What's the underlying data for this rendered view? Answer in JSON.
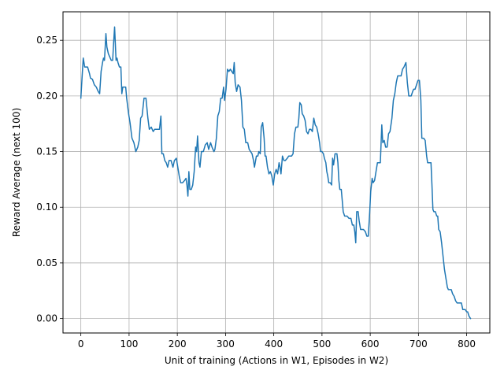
{
  "chart_data": {
    "type": "line",
    "title": "",
    "xlabel": "Unit of training (Actions in W1, Episodes in W2)",
    "ylabel": "Reward Average (next 100)",
    "xlim": [
      -37,
      848
    ],
    "ylim": [
      -0.013,
      0.2756
    ],
    "x_ticks": [
      0,
      100,
      200,
      300,
      400,
      500,
      600,
      700,
      800
    ],
    "y_ticks": [
      0.0,
      0.05,
      0.1,
      0.15,
      0.2,
      0.25
    ],
    "x_tick_labels": [
      "0",
      "100",
      "200",
      "300",
      "400",
      "500",
      "600",
      "700",
      "800"
    ],
    "y_tick_labels": [
      "0.00",
      "0.05",
      "0.10",
      "0.15",
      "0.20",
      "0.25"
    ],
    "grid": true,
    "series": [
      {
        "name": "",
        "color": "#1f77b4",
        "points": [
          [
            0,
            0.198
          ],
          [
            3,
            0.22
          ],
          [
            5,
            0.234
          ],
          [
            8,
            0.226
          ],
          [
            14,
            0.226
          ],
          [
            18,
            0.22
          ],
          [
            20,
            0.216
          ],
          [
            24,
            0.215
          ],
          [
            28,
            0.21
          ],
          [
            32,
            0.208
          ],
          [
            36,
            0.204
          ],
          [
            39,
            0.202
          ],
          [
            42,
            0.222
          ],
          [
            45,
            0.23
          ],
          [
            47,
            0.234
          ],
          [
            49,
            0.232
          ],
          [
            52,
            0.256
          ],
          [
            54,
            0.244
          ],
          [
            57,
            0.238
          ],
          [
            60,
            0.235
          ],
          [
            63,
            0.232
          ],
          [
            66,
            0.232
          ],
          [
            68,
            0.248
          ],
          [
            70,
            0.262
          ],
          [
            73,
            0.232
          ],
          [
            75,
            0.234
          ],
          [
            77,
            0.23
          ],
          [
            80,
            0.226
          ],
          [
            83,
            0.226
          ],
          [
            85,
            0.202
          ],
          [
            87,
            0.208
          ],
          [
            93,
            0.208
          ],
          [
            95,
            0.198
          ],
          [
            99,
            0.184
          ],
          [
            102,
            0.176
          ],
          [
            106,
            0.162
          ],
          [
            110,
            0.158
          ],
          [
            114,
            0.15
          ],
          [
            118,
            0.154
          ],
          [
            121,
            0.16
          ],
          [
            124,
            0.18
          ],
          [
            127,
            0.182
          ],
          [
            131,
            0.198
          ],
          [
            135,
            0.198
          ],
          [
            139,
            0.18
          ],
          [
            142,
            0.17
          ],
          [
            146,
            0.172
          ],
          [
            150,
            0.168
          ],
          [
            153,
            0.17
          ],
          [
            160,
            0.17
          ],
          [
            163,
            0.17
          ],
          [
            166,
            0.182
          ],
          [
            168,
            0.148
          ],
          [
            171,
            0.148
          ],
          [
            174,
            0.142
          ],
          [
            177,
            0.14
          ],
          [
            180,
            0.136
          ],
          [
            183,
            0.142
          ],
          [
            187,
            0.142
          ],
          [
            191,
            0.136
          ],
          [
            194,
            0.142
          ],
          [
            198,
            0.144
          ],
          [
            201,
            0.136
          ],
          [
            204,
            0.128
          ],
          [
            207,
            0.122
          ],
          [
            211,
            0.122
          ],
          [
            215,
            0.124
          ],
          [
            218,
            0.126
          ],
          [
            220,
            0.12
          ],
          [
            222,
            0.11
          ],
          [
            224,
            0.132
          ],
          [
            226,
            0.116
          ],
          [
            229,
            0.116
          ],
          [
            232,
            0.12
          ],
          [
            235,
            0.132
          ],
          [
            238,
            0.154
          ],
          [
            240,
            0.15
          ],
          [
            242,
            0.164
          ],
          [
            245,
            0.14
          ],
          [
            247,
            0.136
          ],
          [
            250,
            0.15
          ],
          [
            254,
            0.15
          ],
          [
            258,
            0.156
          ],
          [
            262,
            0.158
          ],
          [
            265,
            0.152
          ],
          [
            269,
            0.158
          ],
          [
            272,
            0.154
          ],
          [
            276,
            0.15
          ],
          [
            278,
            0.152
          ],
          [
            281,
            0.162
          ],
          [
            284,
            0.182
          ],
          [
            287,
            0.186
          ],
          [
            290,
            0.198
          ],
          [
            293,
            0.198
          ],
          [
            296,
            0.208
          ],
          [
            298,
            0.196
          ],
          [
            301,
            0.206
          ],
          [
            304,
            0.224
          ],
          [
            307,
            0.222
          ],
          [
            310,
            0.224
          ],
          [
            313,
            0.222
          ],
          [
            316,
            0.22
          ],
          [
            318,
            0.23
          ],
          [
            320,
            0.212
          ],
          [
            323,
            0.204
          ],
          [
            326,
            0.21
          ],
          [
            330,
            0.208
          ],
          [
            333,
            0.196
          ],
          [
            336,
            0.172
          ],
          [
            339,
            0.17
          ],
          [
            342,
            0.158
          ],
          [
            346,
            0.158
          ],
          [
            349,
            0.152
          ],
          [
            352,
            0.15
          ],
          [
            355,
            0.148
          ],
          [
            358,
            0.142
          ],
          [
            360,
            0.136
          ],
          [
            364,
            0.146
          ],
          [
            367,
            0.146
          ],
          [
            369,
            0.15
          ],
          [
            372,
            0.148
          ],
          [
            374,
            0.172
          ],
          [
            377,
            0.176
          ],
          [
            380,
            0.162
          ],
          [
            382,
            0.146
          ],
          [
            384,
            0.146
          ],
          [
            387,
            0.136
          ],
          [
            390,
            0.13
          ],
          [
            393,
            0.132
          ],
          [
            396,
            0.128
          ],
          [
            399,
            0.12
          ],
          [
            402,
            0.13
          ],
          [
            405,
            0.134
          ],
          [
            408,
            0.13
          ],
          [
            411,
            0.14
          ],
          [
            413,
            0.136
          ],
          [
            415,
            0.13
          ],
          [
            418,
            0.146
          ],
          [
            421,
            0.142
          ],
          [
            424,
            0.142
          ],
          [
            428,
            0.144
          ],
          [
            431,
            0.146
          ],
          [
            434,
            0.146
          ],
          [
            437,
            0.146
          ],
          [
            440,
            0.148
          ],
          [
            443,
            0.166
          ],
          [
            446,
            0.172
          ],
          [
            450,
            0.172
          ],
          [
            452,
            0.18
          ],
          [
            454,
            0.194
          ],
          [
            457,
            0.192
          ],
          [
            459,
            0.184
          ],
          [
            462,
            0.182
          ],
          [
            465,
            0.178
          ],
          [
            468,
            0.168
          ],
          [
            471,
            0.166
          ],
          [
            474,
            0.17
          ],
          [
            477,
            0.17
          ],
          [
            480,
            0.168
          ],
          [
            483,
            0.18
          ],
          [
            486,
            0.174
          ],
          [
            489,
            0.172
          ],
          [
            492,
            0.166
          ],
          [
            495,
            0.158
          ],
          [
            497,
            0.15
          ],
          [
            500,
            0.15
          ],
          [
            503,
            0.148
          ],
          [
            505,
            0.144
          ],
          [
            508,
            0.14
          ],
          [
            510,
            0.132
          ],
          [
            512,
            0.128
          ],
          [
            514,
            0.122
          ],
          [
            517,
            0.122
          ],
          [
            520,
            0.12
          ],
          [
            522,
            0.144
          ],
          [
            524,
            0.138
          ],
          [
            527,
            0.148
          ],
          [
            531,
            0.148
          ],
          [
            533,
            0.14
          ],
          [
            535,
            0.124
          ],
          [
            537,
            0.116
          ],
          [
            540,
            0.116
          ],
          [
            544,
            0.096
          ],
          [
            547,
            0.092
          ],
          [
            552,
            0.092
          ],
          [
            556,
            0.09
          ],
          [
            560,
            0.09
          ],
          [
            563,
            0.084
          ],
          [
            566,
            0.084
          ],
          [
            568,
            0.078
          ],
          [
            570,
            0.068
          ],
          [
            572,
            0.096
          ],
          [
            575,
            0.096
          ],
          [
            577,
            0.088
          ],
          [
            580,
            0.08
          ],
          [
            583,
            0.08
          ],
          [
            586,
            0.08
          ],
          [
            590,
            0.078
          ],
          [
            593,
            0.074
          ],
          [
            596,
            0.074
          ],
          [
            599,
            0.096
          ],
          [
            601,
            0.114
          ],
          [
            604,
            0.126
          ],
          [
            606,
            0.122
          ],
          [
            609,
            0.124
          ],
          [
            612,
            0.132
          ],
          [
            615,
            0.14
          ],
          [
            621,
            0.14
          ],
          [
            624,
            0.174
          ],
          [
            626,
            0.158
          ],
          [
            629,
            0.16
          ],
          [
            632,
            0.154
          ],
          [
            635,
            0.154
          ],
          [
            638,
            0.166
          ],
          [
            641,
            0.168
          ],
          [
            645,
            0.18
          ],
          [
            648,
            0.196
          ],
          [
            651,
            0.202
          ],
          [
            654,
            0.212
          ],
          [
            657,
            0.218
          ],
          [
            660,
            0.218
          ],
          [
            664,
            0.218
          ],
          [
            667,
            0.224
          ],
          [
            670,
            0.226
          ],
          [
            674,
            0.23
          ],
          [
            677,
            0.212
          ],
          [
            680,
            0.2
          ],
          [
            685,
            0.2
          ],
          [
            688,
            0.204
          ],
          [
            690,
            0.206
          ],
          [
            693,
            0.206
          ],
          [
            696,
            0.21
          ],
          [
            699,
            0.214
          ],
          [
            702,
            0.214
          ],
          [
            705,
            0.196
          ],
          [
            707,
            0.162
          ],
          [
            711,
            0.162
          ],
          [
            714,
            0.16
          ],
          [
            717,
            0.146
          ],
          [
            719,
            0.14
          ],
          [
            722,
            0.14
          ],
          [
            726,
            0.14
          ],
          [
            728,
            0.12
          ],
          [
            730,
            0.098
          ],
          [
            732,
            0.096
          ],
          [
            735,
            0.096
          ],
          [
            738,
            0.092
          ],
          [
            740,
            0.092
          ],
          [
            742,
            0.08
          ],
          [
            745,
            0.078
          ],
          [
            748,
            0.068
          ],
          [
            751,
            0.056
          ],
          [
            754,
            0.044
          ],
          [
            757,
            0.036
          ],
          [
            760,
            0.028
          ],
          [
            762,
            0.026
          ],
          [
            765,
            0.026
          ],
          [
            768,
            0.026
          ],
          [
            771,
            0.022
          ],
          [
            774,
            0.02
          ],
          [
            777,
            0.016
          ],
          [
            780,
            0.014
          ],
          [
            783,
            0.014
          ],
          [
            786,
            0.014
          ],
          [
            789,
            0.014
          ],
          [
            792,
            0.008
          ],
          [
            794,
            0.008
          ],
          [
            797,
            0.008
          ],
          [
            800,
            0.006
          ],
          [
            802,
            0.006
          ],
          [
            805,
            0.002
          ],
          [
            808,
            0.0
          ]
        ]
      }
    ]
  }
}
